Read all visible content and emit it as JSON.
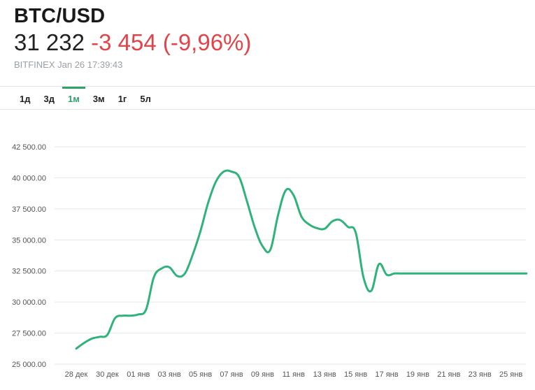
{
  "header": {
    "ticker": "BTC/USD",
    "price": "31 232",
    "change": "-3 454 (-9,96%)",
    "source": "BITFINEX Jan 26 17:39:43"
  },
  "tabs": [
    {
      "label": "1д",
      "active": false
    },
    {
      "label": "3д",
      "active": false
    },
    {
      "label": "1м",
      "active": true
    },
    {
      "label": "3м",
      "active": false
    },
    {
      "label": "1г",
      "active": false
    },
    {
      "label": "5л",
      "active": false
    }
  ],
  "colors": {
    "line": "#2fb37a",
    "active_tab": "#2fa36b",
    "change": "#e0454a"
  },
  "chart_data": {
    "type": "line",
    "y_ticks": [
      "42 500.00",
      "40 000.00",
      "37 500.00",
      "35 000.00",
      "32 500.00",
      "30 000.00",
      "27 500.00",
      "25 000.00"
    ],
    "y_tick_values": [
      42500,
      40000,
      37500,
      35000,
      32500,
      30000,
      27500,
      25000
    ],
    "ylim": [
      25000,
      42500
    ],
    "x_ticks": [
      "28 дек",
      "30 дек",
      "01 янв",
      "03 янв",
      "05 янв",
      "07 янв",
      "09 янв",
      "11 янв",
      "13 янв",
      "15 янв",
      "17 янв",
      "19 янв",
      "21 янв",
      "23 янв",
      "25 янв"
    ],
    "x_tick_values": [
      0,
      2,
      4,
      6,
      8,
      10,
      12,
      14,
      16,
      18,
      20,
      22,
      24,
      26,
      28
    ],
    "grid": true,
    "series": [
      {
        "x": [
          0,
          0.5,
          1,
          1.5,
          2,
          2.5,
          3,
          3.5,
          4,
          4.5,
          5,
          5.5,
          6,
          6.5,
          7,
          7.5,
          8,
          8.5,
          9,
          9.5,
          10,
          10.5,
          11,
          11.5,
          12,
          12.5,
          13,
          13.5,
          14,
          14.5,
          15,
          15.5,
          16,
          16.5,
          17,
          17.5,
          18,
          18.5,
          19,
          19.5,
          20,
          20.5,
          21,
          21.5,
          22,
          22.5,
          23,
          23.5,
          24,
          24.5,
          25,
          25.5,
          26,
          26.5,
          27,
          27.5,
          28,
          28.5,
          29
        ],
        "y": [
          26250,
          26700,
          27050,
          27200,
          27350,
          28700,
          28900,
          28900,
          29000,
          29400,
          32000,
          32700,
          32800,
          32100,
          32300,
          33800,
          35700,
          38000,
          39700,
          40500,
          40500,
          40050,
          38100,
          36000,
          34500,
          34200,
          37000,
          39000,
          38600,
          36900,
          36250,
          35950,
          35900,
          36500,
          36600,
          36050,
          35600,
          32000,
          30900,
          33050,
          32200,
          32300,
          32300,
          32300,
          32300,
          32300,
          32300,
          32300,
          32300,
          32300,
          32300,
          32300,
          32300,
          32300,
          32300,
          32300,
          32300,
          32300,
          32300
        ]
      }
    ]
  }
}
